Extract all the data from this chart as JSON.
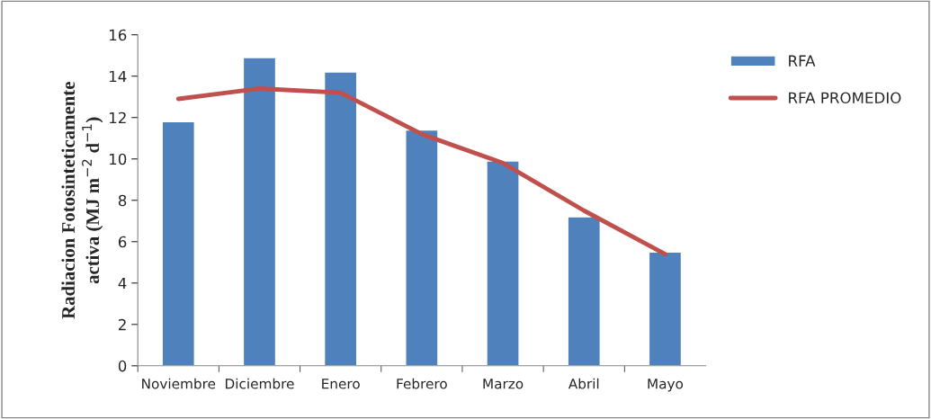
{
  "chart_data": {
    "type": "bar",
    "categories": [
      "Noviembre",
      "Diciembre",
      "Enero",
      "Febrero",
      "Marzo",
      "Abril",
      "Mayo"
    ],
    "ylabel": "Radiacion Fotosinteticamente\nactiva (MJ m$^{−2}$ d$^{−1}$)",
    "series": [
      {
        "name": "RFA",
        "color": "#4f81bd",
        "values": [
          11.8,
          14.9,
          14.2,
          11.4,
          9.9,
          7.2,
          5.5
        ]
      },
      {
        "name": "RFA PROMEDIO",
        "type": "line",
        "color": "#c0504d",
        "values": [
          12.9,
          13.4,
          13.2,
          11.2,
          9.8,
          7.5,
          5.4
        ]
      }
    ],
    "ylim": [
      0,
      16
    ],
    "yticks": [
      0,
      2,
      4,
      6,
      8,
      10,
      12,
      14,
      16
    ],
    "grid": false,
    "legend": "right",
    "marker": "none",
    "line_style": "solid"
  }
}
